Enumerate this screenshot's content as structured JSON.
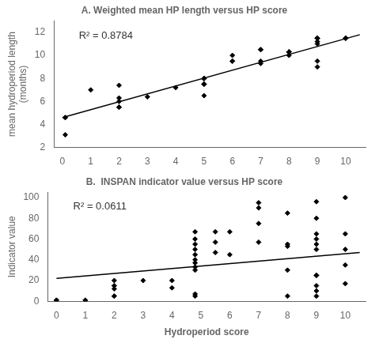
{
  "chart_data": [
    {
      "type": "scatter",
      "title": "A. Weighted mean HP length versus HP score",
      "ylabel": "mean hydroperiod length\n(months)",
      "annotations": [
        "R² = 0.8784"
      ],
      "xlim": [
        -0.3,
        10.7
      ],
      "xticks": [
        0,
        1,
        2,
        3,
        4,
        5,
        6,
        7,
        8,
        9,
        10
      ],
      "ylim": [
        2,
        13
      ],
      "yticks": [
        2,
        4,
        6,
        8,
        10,
        12
      ],
      "grid": false,
      "series": [
        {
          "type": "scatter",
          "marker": "diamond",
          "color": "black",
          "x": [
            0.1,
            0.1,
            0.1,
            1.0,
            2.0,
            2.0,
            2.0,
            2.0,
            2.0,
            2.0,
            3.0,
            4.0,
            5.0,
            5.0,
            5.0,
            5.0,
            5.0,
            5.0,
            5.0,
            6.0,
            6.0,
            6.0,
            7.0,
            7.0,
            7.0,
            7.0,
            8.0,
            8.0,
            8.0,
            8.0,
            8.0,
            9.0,
            9.0,
            9.0,
            9.0,
            9.0,
            9.0,
            9.0,
            9.0,
            10.0,
            10.0,
            10.0,
            10.0
          ],
          "values": [
            4.6,
            3.1,
            4.6,
            7.0,
            5.5,
            5.5,
            5.5,
            6.0,
            7.4,
            6.3,
            6.4,
            7.2,
            7.5,
            8.0,
            8.0,
            8.0,
            8.0,
            7.5,
            6.5,
            10.0,
            9.5,
            9.5,
            10.5,
            10.5,
            9.5,
            9.3,
            10.3,
            10.3,
            10.3,
            10.3,
            10.0,
            11.2,
            11.5,
            11.5,
            9.0,
            9.5,
            11.0,
            11.5,
            11.5,
            11.5,
            11.5,
            11.5,
            11.5
          ]
        },
        {
          "type": "line",
          "color": "black",
          "x": [
            0.0,
            10.5
          ],
          "values": [
            4.6,
            11.8
          ]
        }
      ]
    },
    {
      "type": "scatter",
      "title": "B.  INSPAN indicator value versus HP score",
      "xlabel": "Hydroperiod score",
      "ylabel": "Indicator value",
      "annotations": [
        "R² = 0.0611"
      ],
      "xlim": [
        -0.3,
        10.7
      ],
      "xticks": [
        0,
        1,
        2,
        3,
        4,
        5,
        6,
        7,
        8,
        9,
        10
      ],
      "ylim": [
        0,
        105
      ],
      "yticks": [
        0,
        20,
        40,
        60,
        80,
        100
      ],
      "grid": false,
      "series": [
        {
          "type": "scatter",
          "marker": "diamond",
          "color": "black",
          "x": [
            0.0,
            0.0,
            1.0,
            1.0,
            2.0,
            2.0,
            2.0,
            2.0,
            2.0,
            2.0,
            3.0,
            4.0,
            4.0,
            4.8,
            4.8,
            4.8,
            4.8,
            4.8,
            4.8,
            4.8,
            4.8,
            4.8,
            4.8,
            4.8,
            5.5,
            5.5,
            5.5,
            6.0,
            6.0,
            7.0,
            7.0,
            7.0,
            7.0,
            8.0,
            8.0,
            8.0,
            8.0,
            8.0,
            9.0,
            9.0,
            9.0,
            9.0,
            9.0,
            9.0,
            9.0,
            9.0,
            9.0,
            9.0,
            9.0,
            10.0,
            10.0,
            10.0,
            10.0,
            10.0
          ],
          "values": [
            1.0,
            1.0,
            1.0,
            1.0,
            5.0,
            5.0,
            12.0,
            15.0,
            15.0,
            20.0,
            20.0,
            13.0,
            20.0,
            5.0,
            7.0,
            30.0,
            33.0,
            37.0,
            40.0,
            45.0,
            50.0,
            55.0,
            60.0,
            67.0,
            47.0,
            57.0,
            67.0,
            45.0,
            67.0,
            90.0,
            75.0,
            57.0,
            95.0,
            85.0,
            30.0,
            55.0,
            53.0,
            5.0,
            5.0,
            10.0,
            15.0,
            25.0,
            25.0,
            50.0,
            55.0,
            60.0,
            65.0,
            96.0,
            80.0,
            17.0,
            35.0,
            50.0,
            65.0,
            100.0
          ]
        },
        {
          "type": "line",
          "color": "black",
          "x": [
            0.0,
            10.5
          ],
          "values": [
            22.0,
            47.0
          ]
        }
      ]
    }
  ]
}
